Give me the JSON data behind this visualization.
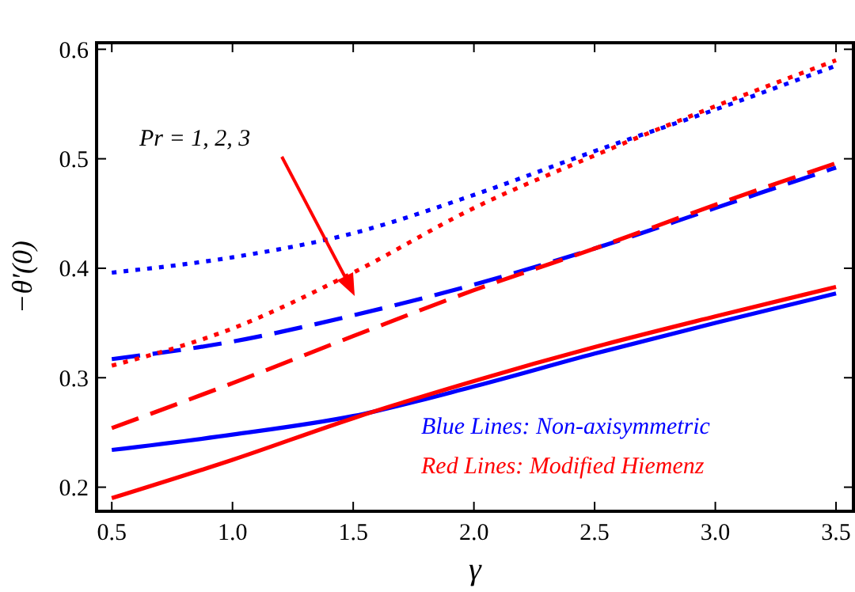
{
  "chart_data": {
    "type": "line",
    "xlabel": "γ",
    "ylabel": "−θ′(0)",
    "x": [
      0.5,
      1.0,
      1.5,
      2.0,
      2.5,
      3.0,
      3.5
    ],
    "xlim": [
      0.437,
      3.572
    ],
    "ylim": [
      0.178,
      0.606
    ],
    "xticks": [
      {
        "value": 0.5,
        "label": "0.5"
      },
      {
        "value": 1,
        "label": "1.0"
      },
      {
        "value": 1.5,
        "label": "1.5"
      },
      {
        "value": 2,
        "label": "2.0"
      },
      {
        "value": 2.5,
        "label": "2.5"
      },
      {
        "value": 3,
        "label": "3.0"
      },
      {
        "value": 3.5,
        "label": "3.5"
      }
    ],
    "yticks": [
      0.2,
      0.3,
      0.4,
      0.5,
      0.6
    ],
    "grid": false,
    "marker": "none",
    "series": [
      {
        "color": "#0000ff",
        "line_style": "solid",
        "values": [
          0.234,
          0.248,
          0.265,
          0.292,
          0.322,
          0.35,
          0.377
        ]
      },
      {
        "color": "#ff0000",
        "line_style": "solid",
        "values": [
          0.19,
          0.225,
          0.263,
          0.297,
          0.328,
          0.356,
          0.383
        ]
      },
      {
        "color": "#0000ff",
        "line_style": "dashed",
        "values": [
          0.317,
          0.333,
          0.357,
          0.385,
          0.418,
          0.455,
          0.492
        ]
      },
      {
        "color": "#ff0000",
        "line_style": "dashed",
        "values": [
          0.254,
          0.295,
          0.338,
          0.38,
          0.418,
          0.458,
          0.496
        ]
      },
      {
        "color": "#0000ff",
        "line_style": "dotted",
        "values": [
          0.396,
          0.41,
          0.432,
          0.467,
          0.507,
          0.545,
          0.585
        ]
      },
      {
        "color": "#ff0000",
        "line_style": "dotted",
        "values": [
          0.311,
          0.345,
          0.396,
          0.455,
          0.503,
          0.548,
          0.59
        ]
      }
    ],
    "annotations": [
      "Pr = 1, 2, 3",
      "Blue Lines: Non-axisymmetric",
      "Red Lines: Modified Hiemenz"
    ]
  }
}
